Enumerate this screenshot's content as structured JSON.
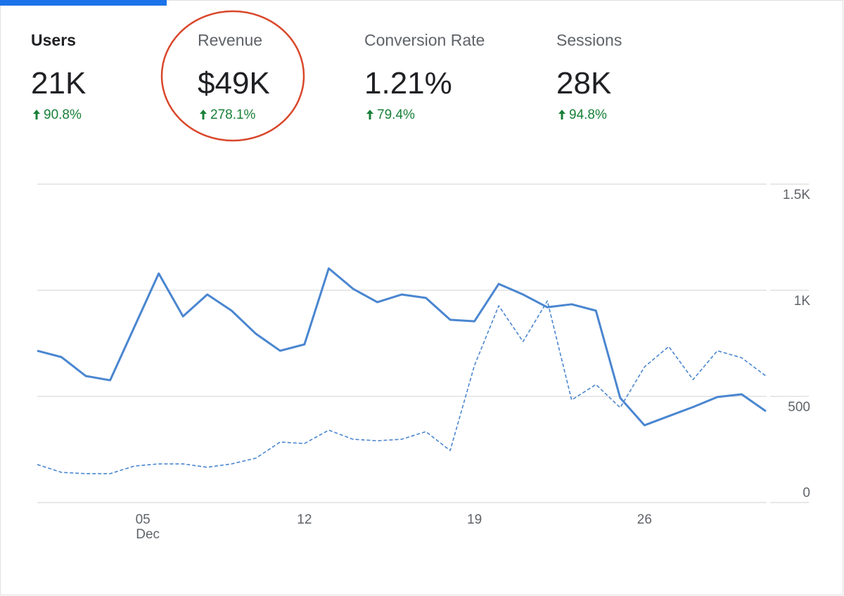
{
  "metrics": [
    {
      "label": "Users",
      "value": "21K",
      "change": "90.8%"
    },
    {
      "label": "Revenue",
      "value": "$49K",
      "change": "278.1%"
    },
    {
      "label": "Conversion Rate",
      "value": "1.21%",
      "change": "79.4%"
    },
    {
      "label": "Sessions",
      "value": "28K",
      "change": "94.8%"
    }
  ],
  "chart_data": {
    "type": "line",
    "categories": [
      null,
      null,
      null,
      null,
      "05",
      null,
      null,
      null,
      null,
      null,
      null,
      "12",
      null,
      null,
      null,
      null,
      null,
      null,
      "19",
      null,
      null,
      null,
      null,
      null,
      null,
      "26",
      null,
      null,
      null,
      null,
      null
    ],
    "month_label": "Dec",
    "series": [
      {
        "color": "#4a86d0",
        "values": [
          715,
          685,
          596,
          576,
          828,
          1079,
          877,
          980,
          904,
          795,
          715,
          745,
          1103,
          1007,
          944,
          980,
          964,
          861,
          854,
          1030,
          980,
          920,
          934,
          904,
          493,
          364,
          407,
          450,
          497,
          510,
          430
        ]
      },
      {
        "color": "#4a86d0",
        "dashed": true,
        "values": [
          179,
          142,
          136,
          136,
          172,
          182,
          182,
          166,
          182,
          209,
          285,
          278,
          341,
          298,
          291,
          298,
          334,
          245,
          646,
          927,
          758,
          950,
          483,
          556,
          447,
          639,
          735,
          579,
          715,
          682,
          596
        ]
      }
    ],
    "ylim": [
      0,
      1500
    ],
    "yticks": [
      0,
      500,
      {
        "value": 1000,
        "label": "1K"
      },
      {
        "value": 1500,
        "label": "1.5K"
      }
    ],
    "grid": true
  }
}
